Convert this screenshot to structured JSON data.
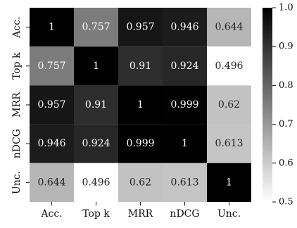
{
  "chart_data": {
    "type": "heatmap",
    "title": "",
    "xlabel": "",
    "ylabel": "",
    "x_categories": [
      "Acc.",
      "Top k",
      "MRR",
      "nDCG",
      "Unc."
    ],
    "y_categories": [
      "Acc.",
      "Top k",
      "MRR",
      "nDCG",
      "Unc."
    ],
    "values": [
      [
        1,
        0.757,
        0.957,
        0.946,
        0.644
      ],
      [
        0.757,
        1,
        0.91,
        0.924,
        0.496
      ],
      [
        0.957,
        0.91,
        1,
        0.999,
        0.62
      ],
      [
        0.946,
        0.924,
        0.999,
        1,
        0.613
      ],
      [
        0.644,
        0.496,
        0.62,
        0.613,
        1
      ]
    ],
    "cell_labels": [
      [
        "1",
        "0.757",
        "0.957",
        "0.946",
        "0.644"
      ],
      [
        "0.757",
        "1",
        "0.91",
        "0.924",
        "0.496"
      ],
      [
        "0.957",
        "0.91",
        "1",
        "0.999",
        "0.62"
      ],
      [
        "0.946",
        "0.924",
        "0.999",
        "1",
        "0.613"
      ],
      [
        "0.644",
        "0.496",
        "0.62",
        "0.613",
        "1"
      ]
    ],
    "colorscale": "greys",
    "colorbar": {
      "range": [
        0.5,
        1.0
      ],
      "ticks": [
        0.5,
        0.6,
        0.7,
        0.8,
        0.9,
        1.0
      ],
      "tick_labels": [
        "0.5",
        "0.6",
        "0.7",
        "0.8",
        "0.9",
        "1.0"
      ]
    },
    "grid": false,
    "legend": "colorbar-right"
  }
}
